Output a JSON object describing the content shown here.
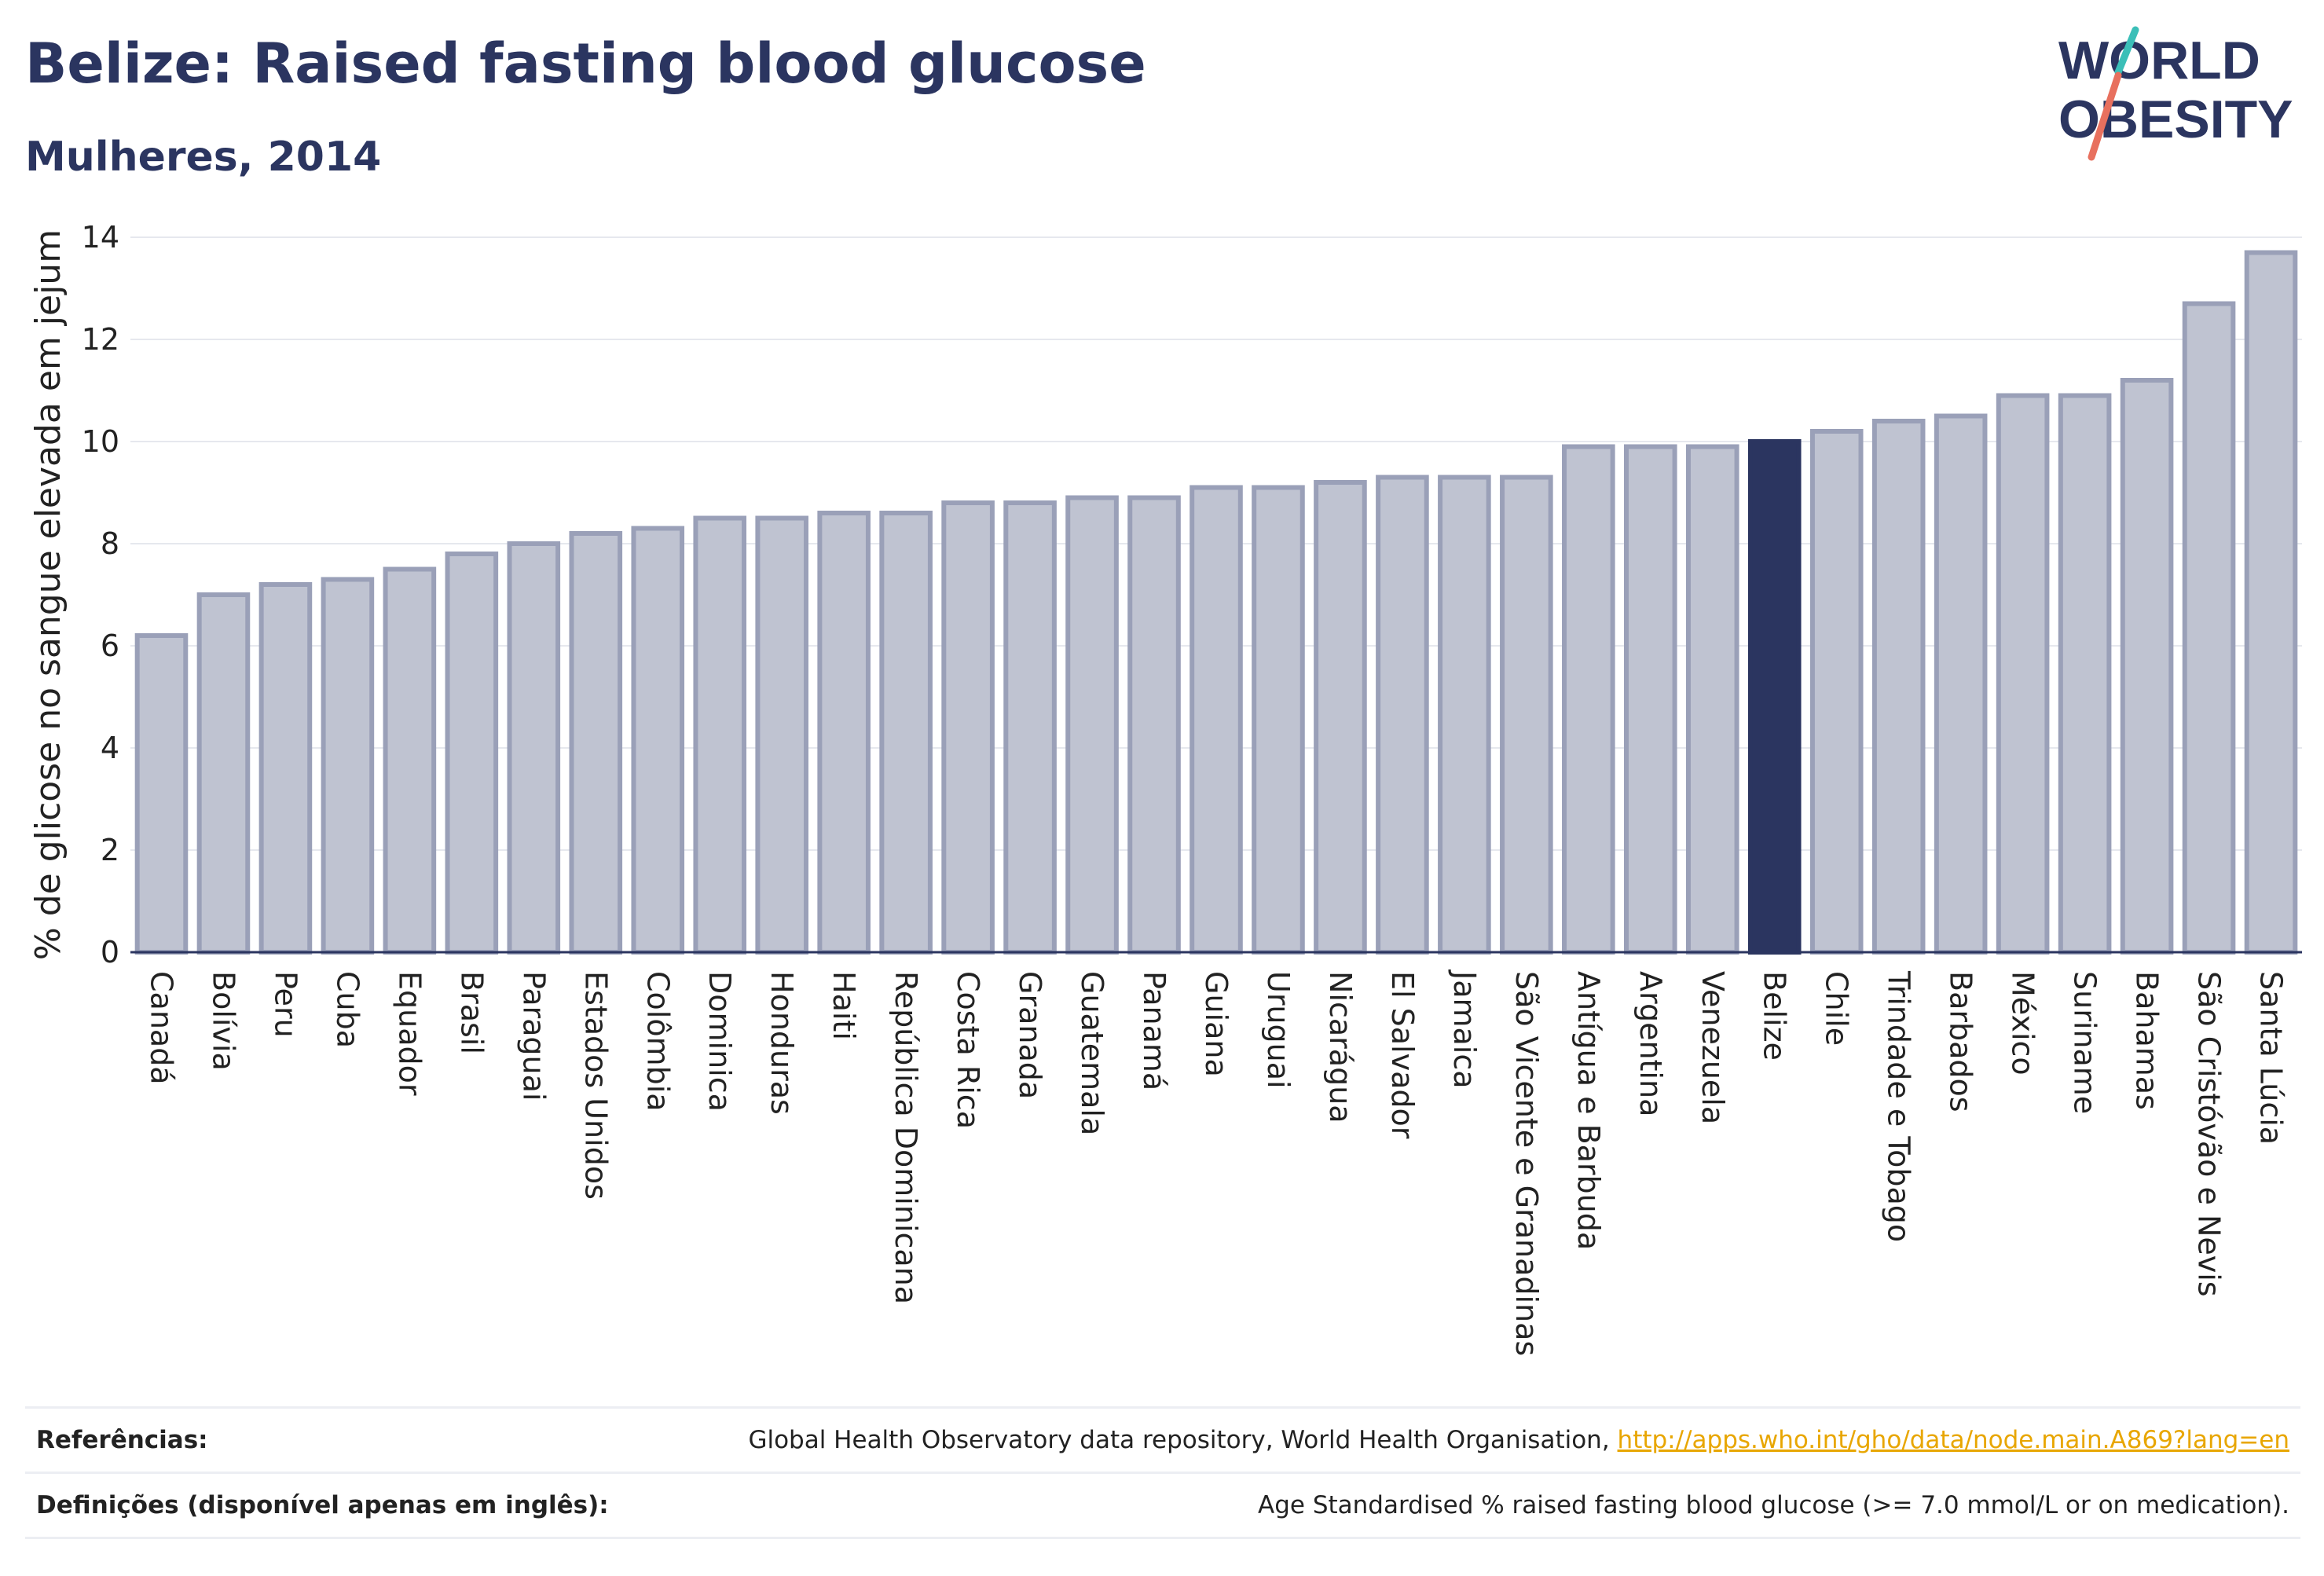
{
  "title": "Belize: Raised fasting blood glucose",
  "subtitle": "Mulheres, 2014",
  "logo": {
    "line1": "WORLD",
    "line2": "OBESITY"
  },
  "chart_data": {
    "type": "bar",
    "ylabel": "% de glicose no sangue elevada em jejum",
    "ylim": [
      0,
      14
    ],
    "yticks": [
      0,
      2,
      4,
      6,
      8,
      10,
      12,
      14
    ],
    "grid": true,
    "highlight": "Belize",
    "colors": {
      "bar": "#bfc3d1",
      "bar_border": "#9aa0b8",
      "highlight": "#2b3560"
    },
    "categories": [
      "Canadá",
      "Bolívia",
      "Peru",
      "Cuba",
      "Equador",
      "Brasil",
      "Paraguai",
      "Estados Unidos",
      "Colômbia",
      "Dominica",
      "Honduras",
      "Haiti",
      "República Dominicana",
      "Costa Rica",
      "Granada",
      "Guatemala",
      "Panamá",
      "Guiana",
      "Uruguai",
      "Nicarágua",
      "El Salvador",
      "Jamaica",
      "São Vicente e Granadinas",
      "Antígua e Barbuda",
      "Argentina",
      "Venezuela",
      "Belize",
      "Chile",
      "Trindade e Tobago",
      "Barbados",
      "México",
      "Suriname",
      "Bahamas",
      "São Cristóvão e Nevis",
      "Santa Lúcia"
    ],
    "values": [
      6.2,
      7.0,
      7.2,
      7.3,
      7.5,
      7.8,
      8.0,
      8.2,
      8.3,
      8.5,
      8.5,
      8.6,
      8.6,
      8.8,
      8.8,
      8.9,
      8.9,
      9.1,
      9.1,
      9.2,
      9.3,
      9.3,
      9.3,
      9.9,
      9.9,
      9.9,
      10.0,
      10.2,
      10.4,
      10.5,
      10.9,
      10.9,
      11.2,
      12.7,
      13.7
    ]
  },
  "footer": {
    "references_label": "Referências:",
    "references_text": "Global Health Observatory data repository, World Health Organisation,",
    "references_link": "http://apps.who.int/gho/data/node.main.A869?lang=en",
    "definitions_label": "Definições (disponível apenas em inglês):",
    "definitions_text": "Age Standardised % raised fasting blood glucose (>= 7.0 mmol/L or on medication)."
  }
}
